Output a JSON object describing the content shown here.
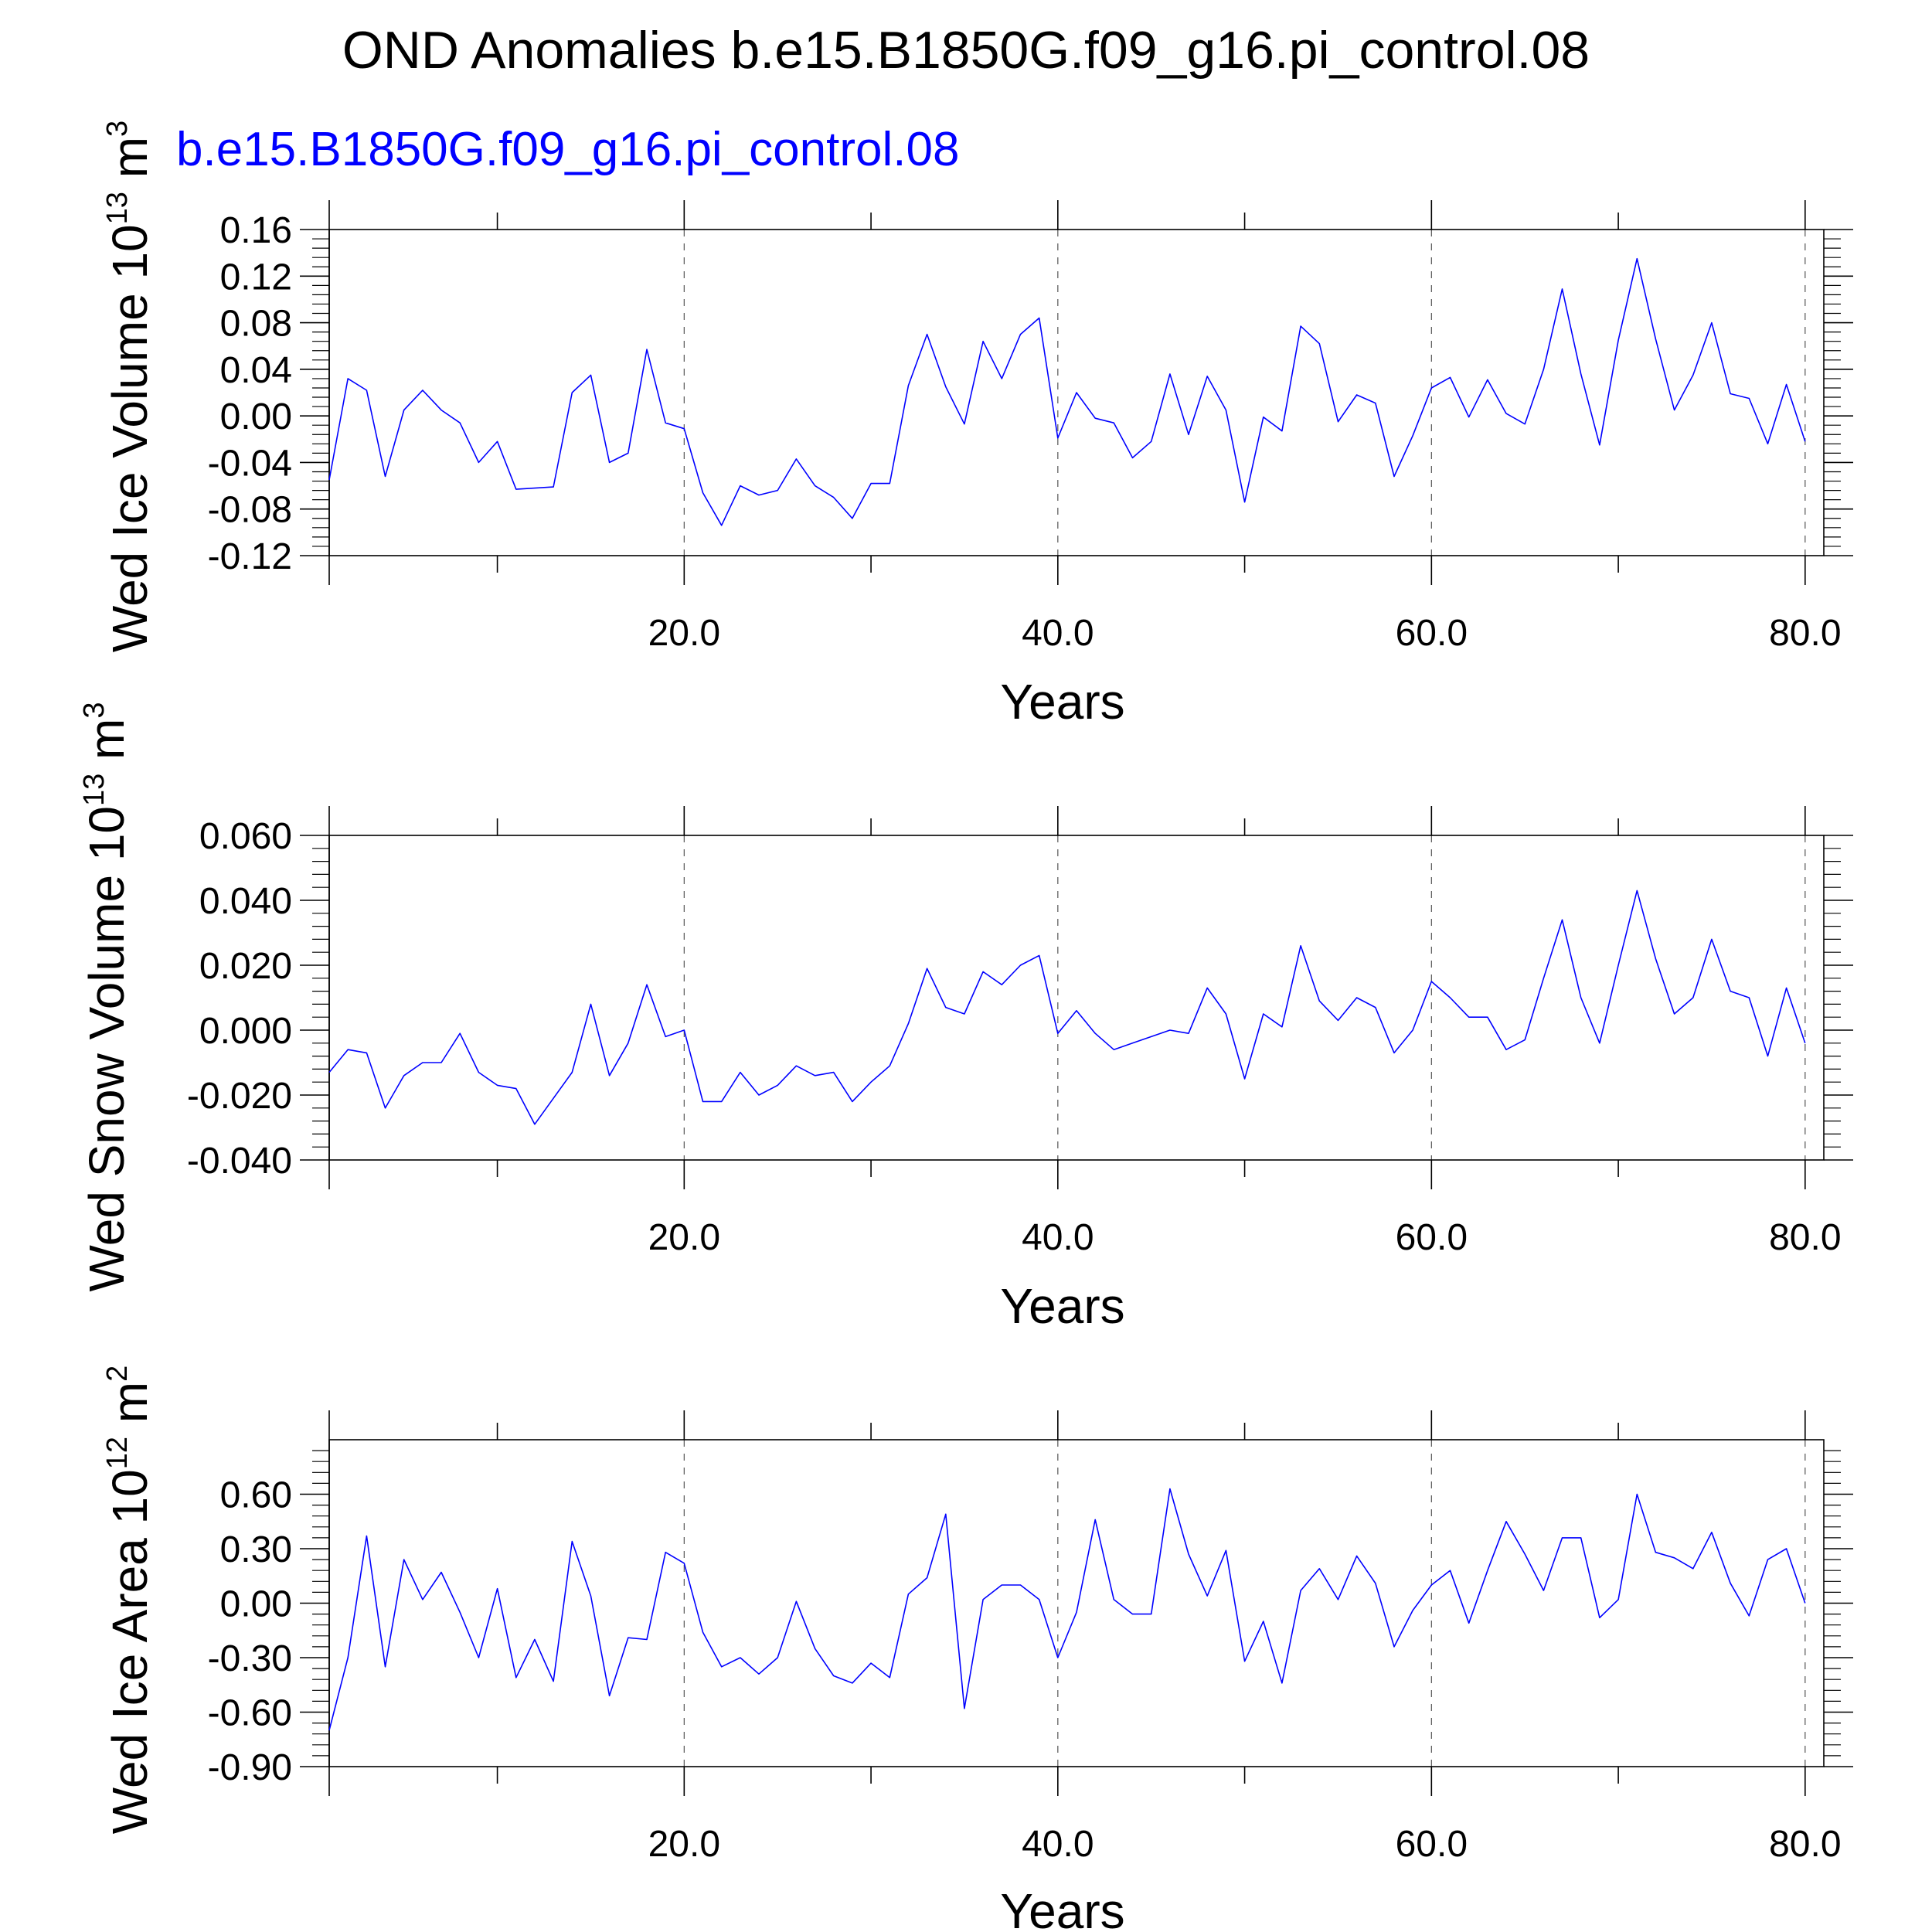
{
  "title": "OND Anomalies b.e15.B1850G.f09_g16.pi_control.08",
  "subtitle": "b.e15.B1850G.f09_g16.pi_control.08",
  "colors": {
    "line": "#0000ff",
    "subtitle": "#0000ff",
    "frame": "#000000"
  },
  "chart_data": [
    {
      "type": "line",
      "ylabel": {
        "main": "Wed Ice Volume 10",
        "exp": "13",
        "unit": " m",
        "unit_exp": "3"
      },
      "xlabel": "Years",
      "xlim": [
        1,
        81
      ],
      "ylim": [
        -0.12,
        0.16
      ],
      "xticks": [
        20,
        40,
        60,
        80
      ],
      "xtick_labels": [
        "20.0",
        "40.0",
        "60.0",
        "80.0"
      ],
      "yticks": [
        -0.12,
        -0.08,
        -0.04,
        0.0,
        0.04,
        0.08,
        0.12,
        0.16
      ],
      "ytick_labels": [
        "-0.12",
        "-0.08",
        "-0.04",
        "0.00",
        "0.04",
        "0.08",
        "0.12",
        "0.16"
      ],
      "grid": "x-dashed",
      "x": [
        1,
        2,
        3,
        4,
        5,
        6,
        7,
        8,
        9,
        10,
        11,
        12,
        13,
        14,
        15,
        16,
        17,
        18,
        19,
        20,
        21,
        22,
        23,
        24,
        25,
        26,
        27,
        28,
        29,
        30,
        31,
        32,
        33,
        34,
        35,
        36,
        37,
        38,
        39,
        40,
        41,
        42,
        43,
        44,
        45,
        46,
        47,
        48,
        49,
        50,
        51,
        52,
        53,
        54,
        55,
        56,
        57,
        58,
        59,
        60,
        61,
        62,
        63,
        64,
        65,
        66,
        67,
        68,
        69,
        70,
        71,
        72,
        73,
        74,
        75,
        76,
        77,
        78,
        79,
        80
      ],
      "values": [
        -0.055,
        0.032,
        0.022,
        -0.052,
        0.005,
        0.022,
        0.005,
        -0.006,
        -0.04,
        -0.022,
        -0.063,
        -0.062,
        -0.061,
        0.02,
        0.035,
        -0.04,
        -0.032,
        0.057,
        -0.006,
        -0.011,
        -0.066,
        -0.094,
        -0.06,
        -0.068,
        -0.064,
        -0.037,
        -0.06,
        -0.07,
        -0.088,
        -0.058,
        -0.058,
        0.026,
        0.07,
        0.025,
        -0.007,
        0.064,
        0.032,
        0.07,
        0.084,
        -0.019,
        0.02,
        -0.002,
        -0.006,
        -0.036,
        -0.022,
        0.036,
        -0.016,
        0.034,
        0.005,
        -0.074,
        -0.001,
        -0.013,
        0.077,
        0.062,
        -0.005,
        0.018,
        0.011,
        -0.052,
        -0.017,
        0.024,
        0.033,
        -0.001,
        0.031,
        0.002,
        -0.007,
        0.04,
        0.109,
        0.036,
        -0.025,
        0.065,
        0.135,
        0.066,
        0.005,
        0.035,
        0.08,
        0.019,
        0.015,
        -0.024,
        0.027,
        -0.022
      ]
    },
    {
      "type": "line",
      "ylabel": {
        "main": "Wed Snow Volume 10",
        "exp": "13",
        "unit": " m",
        "unit_exp": "3"
      },
      "xlabel": "Years",
      "xlim": [
        1,
        81
      ],
      "ylim": [
        -0.04,
        0.06
      ],
      "xticks": [
        20,
        40,
        60,
        80
      ],
      "xtick_labels": [
        "20.0",
        "40.0",
        "60.0",
        "80.0"
      ],
      "yticks": [
        -0.04,
        -0.02,
        0.0,
        0.02,
        0.04,
        0.06
      ],
      "ytick_labels": [
        "-0.040",
        "-0.020",
        "0.000",
        "0.020",
        "0.040",
        "0.060"
      ],
      "grid": "x-dashed",
      "x": [
        1,
        2,
        3,
        4,
        5,
        6,
        7,
        8,
        9,
        10,
        11,
        12,
        13,
        14,
        15,
        16,
        17,
        18,
        19,
        20,
        21,
        22,
        23,
        24,
        25,
        26,
        27,
        28,
        29,
        30,
        31,
        32,
        33,
        34,
        35,
        36,
        37,
        38,
        39,
        40,
        41,
        42,
        43,
        44,
        45,
        46,
        47,
        48,
        49,
        50,
        51,
        52,
        53,
        54,
        55,
        56,
        57,
        58,
        59,
        60,
        61,
        62,
        63,
        64,
        65,
        66,
        67,
        68,
        69,
        70,
        71,
        72,
        73,
        74,
        75,
        76,
        77,
        78,
        79,
        80
      ],
      "values": [
        -0.013,
        -0.006,
        -0.007,
        -0.024,
        -0.014,
        -0.01,
        -0.01,
        -0.001,
        -0.013,
        -0.017,
        -0.018,
        -0.029,
        -0.021,
        -0.013,
        0.008,
        -0.014,
        -0.004,
        0.014,
        -0.002,
        0.0,
        -0.022,
        -0.022,
        -0.013,
        -0.02,
        -0.017,
        -0.011,
        -0.014,
        -0.013,
        -0.022,
        -0.016,
        -0.011,
        0.002,
        0.019,
        0.007,
        0.005,
        0.018,
        0.014,
        0.02,
        0.023,
        -0.001,
        0.006,
        -0.001,
        -0.006,
        -0.004,
        -0.002,
        0.0,
        -0.001,
        0.013,
        0.005,
        -0.015,
        0.005,
        0.001,
        0.026,
        0.009,
        0.003,
        0.01,
        0.007,
        -0.007,
        0.0,
        0.015,
        0.01,
        0.004,
        0.004,
        -0.006,
        -0.003,
        0.016,
        0.034,
        0.01,
        -0.004,
        0.02,
        0.043,
        0.022,
        0.005,
        0.01,
        0.028,
        0.012,
        0.01,
        -0.008,
        0.013,
        -0.004
      ]
    },
    {
      "type": "line",
      "ylabel": {
        "main": "Wed Ice Area 10",
        "exp": "12",
        "unit": " m",
        "unit_exp": "2"
      },
      "xlabel": "Years",
      "xlim": [
        1,
        81
      ],
      "ylim": [
        -0.9,
        0.9
      ],
      "xticks": [
        20,
        40,
        60,
        80
      ],
      "xtick_labels": [
        "20.0",
        "40.0",
        "60.0",
        "80.0"
      ],
      "yticks": [
        -0.9,
        -0.6,
        -0.3,
        0.0,
        0.3,
        0.6
      ],
      "ytick_labels": [
        "-0.90",
        "-0.60",
        "-0.30",
        "0.00",
        "0.30",
        "0.60"
      ],
      "grid": "x-dashed",
      "x": [
        1,
        2,
        3,
        4,
        5,
        6,
        7,
        8,
        9,
        10,
        11,
        12,
        13,
        14,
        15,
        16,
        17,
        18,
        19,
        20,
        21,
        22,
        23,
        24,
        25,
        26,
        27,
        28,
        29,
        30,
        31,
        32,
        33,
        34,
        35,
        36,
        37,
        38,
        39,
        40,
        41,
        42,
        43,
        44,
        45,
        46,
        47,
        48,
        49,
        50,
        51,
        52,
        53,
        54,
        55,
        56,
        57,
        58,
        59,
        60,
        61,
        62,
        63,
        64,
        65,
        66,
        67,
        68,
        69,
        70,
        71,
        72,
        73,
        74,
        75,
        76,
        77,
        78,
        79,
        80
      ],
      "values": [
        -0.7,
        -0.3,
        0.37,
        -0.35,
        0.24,
        0.02,
        0.17,
        -0.05,
        -0.3,
        0.08,
        -0.41,
        -0.2,
        -0.43,
        0.34,
        0.04,
        -0.51,
        -0.19,
        -0.2,
        0.28,
        0.22,
        -0.16,
        -0.35,
        -0.3,
        -0.39,
        -0.3,
        0.01,
        -0.25,
        -0.4,
        -0.44,
        -0.33,
        -0.41,
        0.05,
        0.14,
        0.49,
        -0.58,
        0.02,
        0.1,
        0.1,
        0.02,
        -0.3,
        -0.05,
        0.46,
        0.02,
        -0.06,
        -0.06,
        0.63,
        0.27,
        0.04,
        0.29,
        -0.32,
        -0.1,
        -0.44,
        0.07,
        0.19,
        0.02,
        0.26,
        0.11,
        -0.24,
        -0.04,
        0.1,
        0.18,
        -0.11,
        0.18,
        0.45,
        0.27,
        0.07,
        0.36,
        0.36,
        -0.08,
        0.02,
        0.6,
        0.28,
        0.25,
        0.19,
        0.39,
        0.11,
        -0.07,
        0.24,
        0.3,
        0.0
      ]
    }
  ]
}
